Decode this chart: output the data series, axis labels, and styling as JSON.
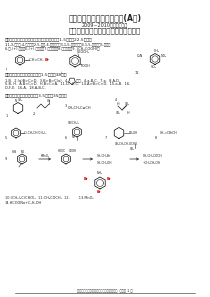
{
  "title_line1": "东莞理工学院（本科）试卷(A卷)",
  "title_line2": "2009~2010学年第二学期",
  "title_line3": "《有机化学》试题参考答案及评分标准",
  "sec1_header": "一、给下列化合物命名或写出结构简式（每小题1.5分，共22.5分）：",
  "sec1_line1": "1.1,3-二甲基-4-乙基苯；2.5-羟基-4-甲基戊烯；3.1,5-苯十二烯；4.1,5-癸二烯；5.丙苯；",
  "sec1_line2": "6.苯-(+)-美酮（E-(+)-丁酮）；7.二苯甲酮；8.乙酸乙酯；9. (CH₃COOH)；",
  "sec2_header": "二、客观回答下列问题（每小题1.5分，共38分）",
  "sec2_line1": "1.B.  2.(a)B>C>D.  3.B>B>C(a).  4.      ,专题.  4.a,B,C.  7.a.  8.A,D.",
  "sec2_line2": "5.B, H.  A.B>C>D.  H.B>C>A.  11.D.  II.C.  14.A>B>C>D.  15.a,B.  16.",
  "sec2_line3": "D,F,E.  16.A.  18.A,B,C.",
  "sec3_header": "三、完成下列反应式（每小题3.5分，共35分）：",
  "sec3_ans1": "10.(CH₃)₂C(CHO)₃  11.CH₃COCH₃  12.        13.MnO₂",
  "sec3_ans2": "14.HCOONa+C₂H₅OH",
  "footer": "【有机化学】试题参考答案及评分标准（共  页）第 1 页",
  "background": "#ffffff",
  "text_color": "#222222",
  "red_color": "#cc0000",
  "gray_color": "#888888"
}
